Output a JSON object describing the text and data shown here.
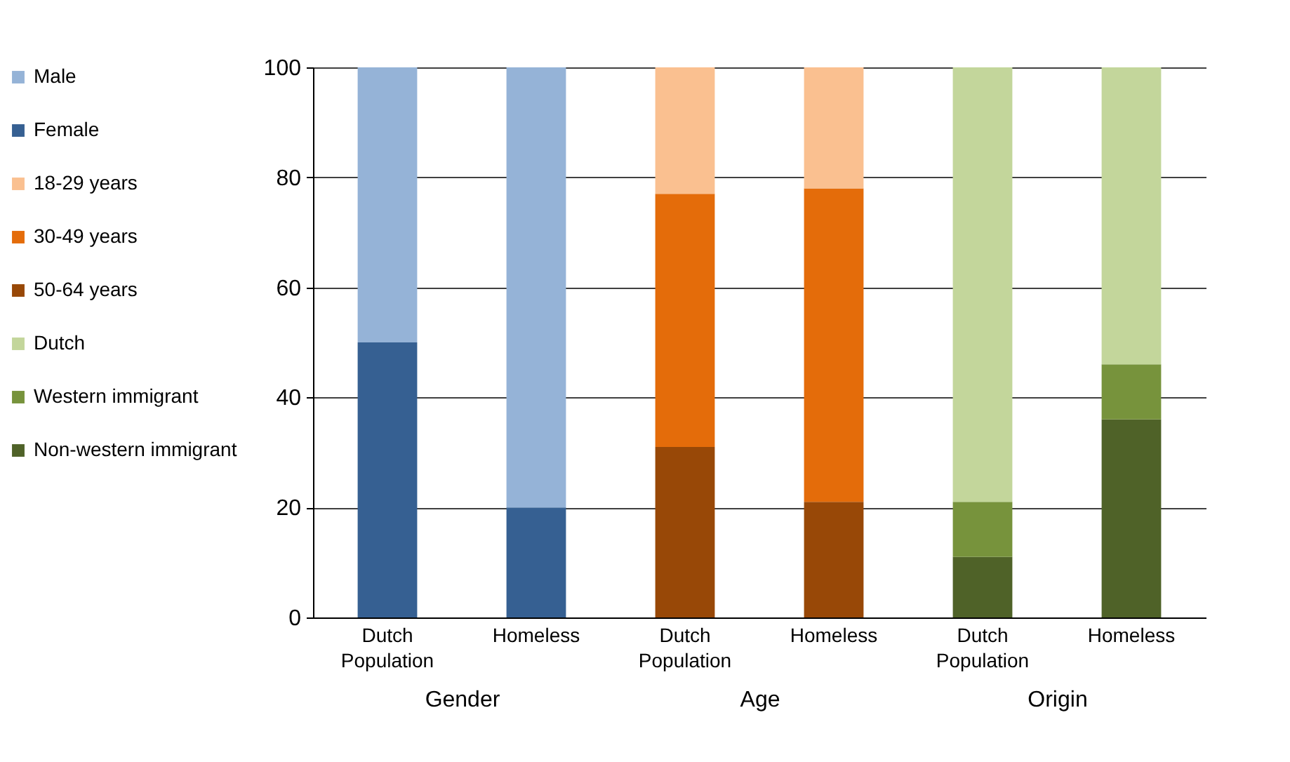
{
  "chart_data": [
    {
      "type": "bar",
      "stacked": true,
      "xlabel": "Gender",
      "categories": [
        "Dutch Population",
        "Homeless"
      ],
      "ylim": [
        0,
        100
      ],
      "yticks": [
        0,
        20,
        40,
        60,
        80,
        100
      ],
      "grid": "y",
      "legend": "left",
      "series": [
        {
          "name": "Female",
          "color": "#366092",
          "values": [
            50,
            20
          ]
        },
        {
          "name": "Male",
          "color": "#95b3d7",
          "values": [
            50,
            80
          ]
        }
      ]
    },
    {
      "type": "bar",
      "stacked": true,
      "xlabel": "Age",
      "categories": [
        "Dutch Population",
        "Homeless"
      ],
      "ylim": [
        0,
        100
      ],
      "yticks": [
        0,
        20,
        40,
        60,
        80,
        100
      ],
      "grid": "y",
      "legend": "left",
      "tick_labels": "x",
      "series": [
        {
          "name": "50-64 years",
          "color": "#984807",
          "values": [
            31,
            21
          ]
        },
        {
          "name": "30-49 years",
          "color": "#e46c0a",
          "values": [
            46,
            57
          ]
        },
        {
          "name": "18-29 years",
          "color": "#fac090",
          "values": [
            23,
            22
          ]
        }
      ]
    },
    {
      "type": "bar",
      "stacked": true,
      "xlabel": "Origin",
      "categories": [
        "Dutch Population",
        "Homeless"
      ],
      "ylim": [
        0,
        100
      ],
      "yticks": [
        0,
        20,
        40,
        60,
        80,
        100
      ],
      "grid": "y",
      "legend": "left",
      "tick_labels": "x",
      "series": [
        {
          "name": "Non-western immigrant",
          "color": "#4f6228",
          "values": [
            11,
            36
          ]
        },
        {
          "name": "Western immigrant",
          "color": "#77933c",
          "values": [
            10,
            10
          ]
        },
        {
          "name": "Dutch",
          "color": "#c3d69b",
          "values": [
            79,
            54
          ]
        }
      ]
    }
  ]
}
